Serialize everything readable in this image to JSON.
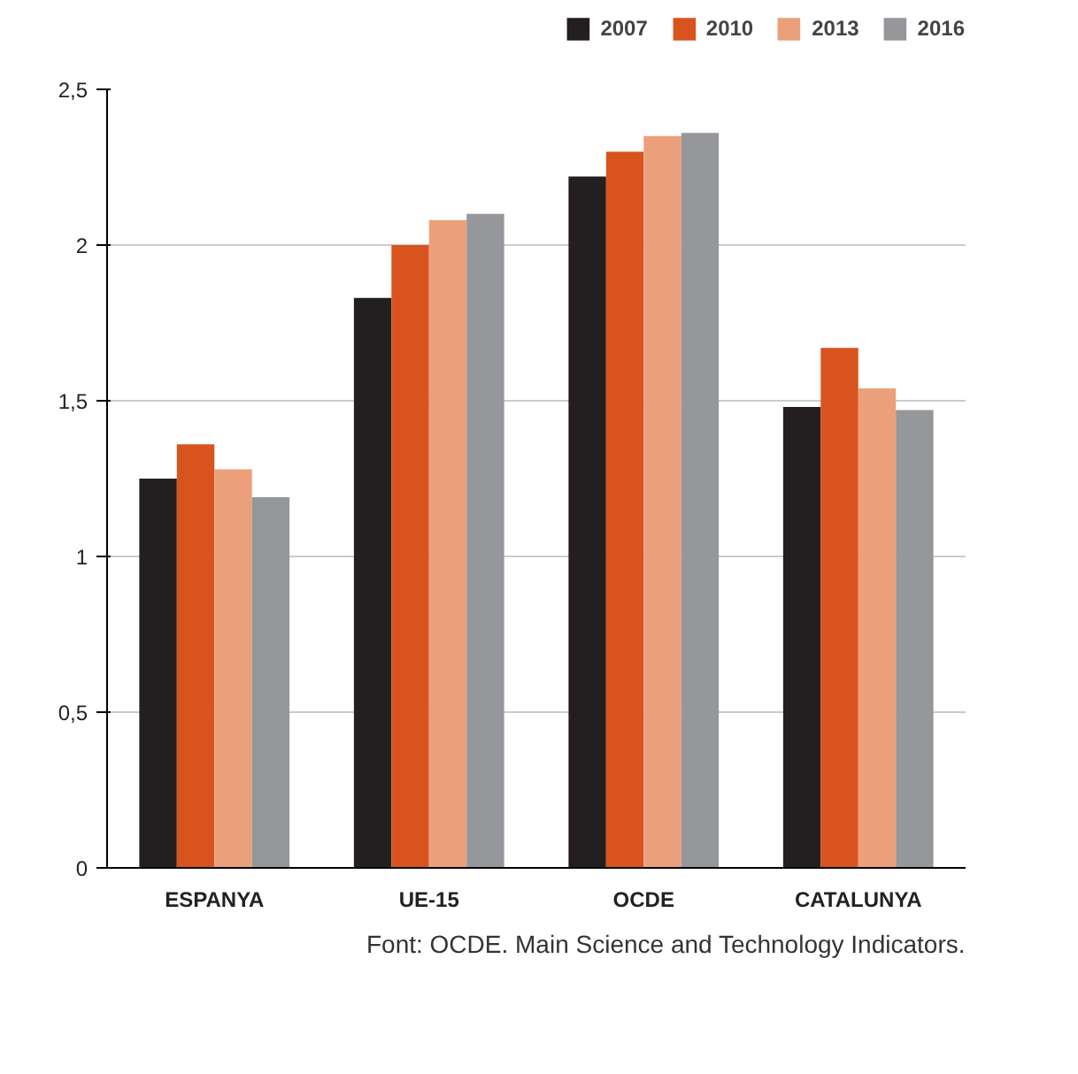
{
  "chart_data": {
    "type": "bar",
    "categories": [
      "ESPANYA",
      "UE-15",
      "OCDE",
      "CATALUNYA"
    ],
    "series": [
      {
        "name": "2007",
        "color": "#231f20",
        "values": [
          1.25,
          1.83,
          2.22,
          1.48
        ]
      },
      {
        "name": "2010",
        "color": "#d9531e",
        "values": [
          1.36,
          2.0,
          2.3,
          1.67
        ]
      },
      {
        "name": "2013",
        "color": "#eba07b",
        "values": [
          1.28,
          2.08,
          2.35,
          1.54
        ]
      },
      {
        "name": "2016",
        "color": "#96979a",
        "values": [
          1.19,
          2.1,
          2.36,
          1.47
        ]
      }
    ],
    "ylim": [
      0,
      2.5
    ],
    "yticks": [
      0,
      {
        "value": 0.5,
        "label": "0,5"
      },
      1,
      {
        "value": 1.5,
        "label": "1,5"
      },
      2,
      {
        "value": 2.5,
        "label": "2,5"
      }
    ],
    "grid": "y",
    "legend": "top right",
    "annotations": [
      "Font: OCDE. Main Science and Technology Indicators."
    ]
  }
}
